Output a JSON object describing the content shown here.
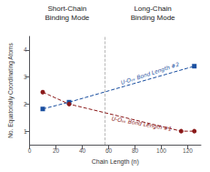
{
  "chart_data": {
    "type": "line",
    "titles": [
      "Short-Chain\nBinding Mode",
      "Long-Chain\nBinding Mode"
    ],
    "xlabel": "Chain Length (n)",
    "ylabel": "No. Equatorially Coordinating Atoms",
    "xlim": [
      0,
      130
    ],
    "ylim": [
      0.5,
      4.5
    ],
    "xticks": [
      0,
      20,
      40,
      60,
      80,
      100,
      120
    ],
    "yticks": [
      1,
      2,
      3,
      4
    ],
    "grid": false,
    "series": [
      {
        "color": "#1a4fa0",
        "marker": "square",
        "line_style": "dashed",
        "x": [
          10,
          30,
          125
        ],
        "values": [
          1.82,
          2.07,
          3.4
        ]
      },
      {
        "color": "#8b1a1a",
        "marker": "circle",
        "line_style": "dashed",
        "x": [
          10,
          30,
          115,
          125
        ],
        "values": [
          2.44,
          2.0,
          1.0,
          1.0
        ]
      }
    ],
    "annotations": [
      {
        "text": "U-Oₑₖ Bond Length #2",
        "x": 70,
        "y": 2.7,
        "color": "#1a4fa0"
      },
      {
        "text": "U-Oₑₖ Bond Length #1",
        "x": 62,
        "y": 1.38,
        "color": "#8b1a1a"
      }
    ],
    "reference_lines": [
      {
        "x": 57,
        "color": "gray",
        "line_style": "dashed"
      }
    ]
  }
}
